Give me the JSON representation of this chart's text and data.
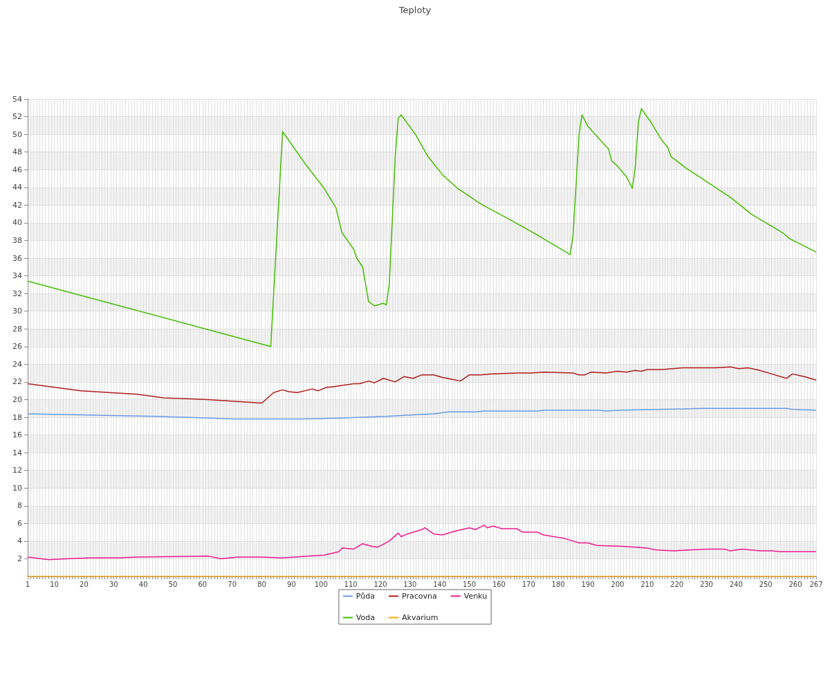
{
  "chart_data": {
    "type": "line",
    "title": "Teploty",
    "marker": "none",
    "grid": true,
    "legend": "bottom",
    "xlim": [
      1,
      267
    ],
    "ylim": [
      0,
      54
    ],
    "yticks": [
      2,
      4,
      6,
      8,
      10,
      12,
      14,
      16,
      18,
      20,
      22,
      24,
      26,
      28,
      30,
      32,
      34,
      36,
      38,
      40,
      42,
      44,
      46,
      48,
      50,
      52,
      54
    ],
    "xticks": [
      1,
      {
        "value": 2,
        "label": null
      },
      {
        "value": 3,
        "label": null
      },
      {
        "value": 4,
        "label": null
      },
      {
        "value": 5,
        "label": null
      },
      {
        "value": 6,
        "label": null
      },
      {
        "value": 7,
        "label": null
      },
      {
        "value": 8,
        "label": null
      },
      {
        "value": 9,
        "label": null
      },
      10,
      {
        "value": 11,
        "label": null
      },
      {
        "value": 12,
        "label": null
      },
      {
        "value": 13,
        "label": null
      },
      {
        "value": 14,
        "label": null
      },
      {
        "value": 15,
        "label": null
      },
      {
        "value": 16,
        "label": null
      },
      {
        "value": 17,
        "label": null
      },
      {
        "value": 18,
        "label": null
      },
      {
        "value": 19,
        "label": null
      },
      20,
      {
        "value": 21,
        "label": null
      },
      {
        "value": 22,
        "label": null
      },
      {
        "value": 23,
        "label": null
      },
      {
        "value": 24,
        "label": null
      },
      {
        "value": 25,
        "label": null
      },
      {
        "value": 26,
        "label": null
      },
      {
        "value": 27,
        "label": null
      },
      {
        "value": 28,
        "label": null
      },
      {
        "value": 29,
        "label": null
      },
      30,
      {
        "value": 31,
        "label": null
      },
      {
        "value": 32,
        "label": null
      },
      {
        "value": 33,
        "label": null
      },
      {
        "value": 34,
        "label": null
      },
      {
        "value": 35,
        "label": null
      },
      {
        "value": 36,
        "label": null
      },
      {
        "value": 37,
        "label": null
      },
      {
        "value": 38,
        "label": null
      },
      {
        "value": 39,
        "label": null
      },
      40,
      {
        "value": 41,
        "label": null
      },
      {
        "value": 42,
        "label": null
      },
      {
        "value": 43,
        "label": null
      },
      {
        "value": 44,
        "label": null
      },
      {
        "value": 45,
        "label": null
      },
      {
        "value": 46,
        "label": null
      },
      {
        "value": 47,
        "label": null
      },
      {
        "value": 48,
        "label": null
      },
      {
        "value": 49,
        "label": null
      },
      50,
      {
        "value": 51,
        "label": null
      },
      {
        "value": 52,
        "label": null
      },
      {
        "value": 53,
        "label": null
      },
      {
        "value": 54,
        "label": null
      },
      {
        "value": 55,
        "label": null
      },
      {
        "value": 56,
        "label": null
      },
      {
        "value": 57,
        "label": null
      },
      {
        "value": 58,
        "label": null
      },
      {
        "value": 59,
        "label": null
      },
      60,
      {
        "value": 61,
        "label": null
      },
      {
        "value": 62,
        "label": null
      },
      {
        "value": 63,
        "label": null
      },
      {
        "value": 64,
        "label": null
      },
      {
        "value": 65,
        "label": null
      },
      {
        "value": 66,
        "label": null
      },
      {
        "value": 67,
        "label": null
      },
      {
        "value": 68,
        "label": null
      },
      {
        "value": 69,
        "label": null
      },
      70,
      {
        "value": 71,
        "label": null
      },
      {
        "value": 72,
        "label": null
      },
      {
        "value": 73,
        "label": null
      },
      {
        "value": 74,
        "label": null
      },
      {
        "value": 75,
        "label": null
      },
      {
        "value": 76,
        "label": null
      },
      {
        "value": 77,
        "label": null
      },
      {
        "value": 78,
        "label": null
      },
      {
        "value": 79,
        "label": null
      },
      80,
      {
        "value": 81,
        "label": null
      },
      {
        "value": 82,
        "label": null
      },
      {
        "value": 83,
        "label": null
      },
      {
        "value": 84,
        "label": null
      },
      {
        "value": 85,
        "label": null
      },
      {
        "value": 86,
        "label": null
      },
      {
        "value": 87,
        "label": null
      },
      {
        "value": 88,
        "label": null
      },
      {
        "value": 89,
        "label": null
      },
      90,
      {
        "value": 91,
        "label": null
      },
      {
        "value": 92,
        "label": null
      },
      {
        "value": 93,
        "label": null
      },
      {
        "value": 94,
        "label": null
      },
      {
        "value": 95,
        "label": null
      },
      {
        "value": 96,
        "label": null
      },
      {
        "value": 97,
        "label": null
      },
      {
        "value": 98,
        "label": null
      },
      {
        "value": 99,
        "label": null
      },
      100,
      {
        "value": 101,
        "label": null
      },
      {
        "value": 102,
        "label": null
      },
      {
        "value": 103,
        "label": null
      },
      {
        "value": 104,
        "label": null
      },
      {
        "value": 105,
        "label": null
      },
      {
        "value": 106,
        "label": null
      },
      {
        "value": 107,
        "label": null
      },
      {
        "value": 108,
        "label": null
      },
      {
        "value": 109,
        "label": null
      },
      110,
      {
        "value": 111,
        "label": null
      },
      {
        "value": 112,
        "label": null
      },
      {
        "value": 113,
        "label": null
      },
      {
        "value": 114,
        "label": null
      },
      {
        "value": 115,
        "label": null
      },
      {
        "value": 116,
        "label": null
      },
      {
        "value": 117,
        "label": null
      },
      {
        "value": 118,
        "label": null
      },
      {
        "value": 119,
        "label": null
      },
      120,
      {
        "value": 121,
        "label": null
      },
      {
        "value": 122,
        "label": null
      },
      {
        "value": 123,
        "label": null
      },
      {
        "value": 124,
        "label": null
      },
      {
        "value": 125,
        "label": null
      },
      {
        "value": 126,
        "label": null
      },
      {
        "value": 127,
        "label": null
      },
      {
        "value": 128,
        "label": null
      },
      {
        "value": 129,
        "label": null
      },
      130,
      {
        "value": 131,
        "label": null
      },
      {
        "value": 132,
        "label": null
      },
      {
        "value": 133,
        "label": null
      },
      {
        "value": 134,
        "label": null
      },
      {
        "value": 135,
        "label": null
      },
      {
        "value": 136,
        "label": null
      },
      {
        "value": 137,
        "label": null
      },
      {
        "value": 138,
        "label": null
      },
      {
        "value": 139,
        "label": null
      },
      140,
      {
        "value": 141,
        "label": null
      },
      {
        "value": 142,
        "label": null
      },
      {
        "value": 143,
        "label": null
      },
      {
        "value": 144,
        "label": null
      },
      {
        "value": 145,
        "label": null
      },
      {
        "value": 146,
        "label": null
      },
      {
        "value": 147,
        "label": null
      },
      {
        "value": 148,
        "label": null
      },
      {
        "value": 149,
        "label": null
      },
      150,
      {
        "value": 151,
        "label": null
      },
      {
        "value": 152,
        "label": null
      },
      {
        "value": 153,
        "label": null
      },
      {
        "value": 154,
        "label": null
      },
      {
        "value": 155,
        "label": null
      },
      {
        "value": 156,
        "label": null
      },
      {
        "value": 157,
        "label": null
      },
      {
        "value": 158,
        "label": null
      },
      {
        "value": 159,
        "label": null
      },
      160,
      {
        "value": 161,
        "label": null
      },
      {
        "value": 162,
        "label": null
      },
      {
        "value": 163,
        "label": null
      },
      {
        "value": 164,
        "label": null
      },
      {
        "value": 165,
        "label": null
      },
      {
        "value": 166,
        "label": null
      },
      {
        "value": 167,
        "label": null
      },
      {
        "value": 168,
        "label": null
      },
      {
        "value": 169,
        "label": null
      },
      170,
      {
        "value": 171,
        "label": null
      },
      {
        "value": 172,
        "label": null
      },
      {
        "value": 173,
        "label": null
      },
      {
        "value": 174,
        "label": null
      },
      {
        "value": 175,
        "label": null
      },
      {
        "value": 176,
        "label": null
      },
      {
        "value": 177,
        "label": null
      },
      {
        "value": 178,
        "label": null
      },
      {
        "value": 179,
        "label": null
      },
      180,
      {
        "value": 181,
        "label": null
      },
      {
        "value": 182,
        "label": null
      },
      {
        "value": 183,
        "label": null
      },
      {
        "value": 184,
        "label": null
      },
      {
        "value": 185,
        "label": null
      },
      {
        "value": 186,
        "label": null
      },
      {
        "value": 187,
        "label": null
      },
      {
        "value": 188,
        "label": null
      },
      {
        "value": 189,
        "label": null
      },
      190,
      {
        "value": 191,
        "label": null
      },
      {
        "value": 192,
        "label": null
      },
      {
        "value": 193,
        "label": null
      },
      {
        "value": 194,
        "label": null
      },
      {
        "value": 195,
        "label": null
      },
      {
        "value": 196,
        "label": null
      },
      {
        "value": 197,
        "label": null
      },
      {
        "value": 198,
        "label": null
      },
      {
        "value": 199,
        "label": null
      },
      200,
      {
        "value": 201,
        "label": null
      },
      {
        "value": 202,
        "label": null
      },
      {
        "value": 203,
        "label": null
      },
      {
        "value": 204,
        "label": null
      },
      {
        "value": 205,
        "label": null
      },
      {
        "value": 206,
        "label": null
      },
      {
        "value": 207,
        "label": null
      },
      {
        "value": 208,
        "label": null
      },
      {
        "value": 209,
        "label": null
      },
      210,
      {
        "value": 211,
        "label": null
      },
      {
        "value": 212,
        "label": null
      },
      {
        "value": 213,
        "label": null
      },
      {
        "value": 214,
        "label": null
      },
      {
        "value": 215,
        "label": null
      },
      {
        "value": 216,
        "label": null
      },
      {
        "value": 217,
        "label": null
      },
      {
        "value": 218,
        "label": null
      },
      {
        "value": 219,
        "label": null
      },
      220,
      {
        "value": 221,
        "label": null
      },
      {
        "value": 222,
        "label": null
      },
      {
        "value": 223,
        "label": null
      },
      {
        "value": 224,
        "label": null
      },
      {
        "value": 225,
        "label": null
      },
      {
        "value": 226,
        "label": null
      },
      {
        "value": 227,
        "label": null
      },
      {
        "value": 228,
        "label": null
      },
      {
        "value": 229,
        "label": null
      },
      230,
      {
        "value": 231,
        "label": null
      },
      {
        "value": 232,
        "label": null
      },
      {
        "value": 233,
        "label": null
      },
      {
        "value": 234,
        "label": null
      },
      {
        "value": 235,
        "label": null
      },
      {
        "value": 236,
        "label": null
      },
      {
        "value": 237,
        "label": null
      },
      {
        "value": 238,
        "label": null
      },
      {
        "value": 239,
        "label": null
      },
      240,
      {
        "value": 241,
        "label": null
      },
      {
        "value": 242,
        "label": null
      },
      {
        "value": 243,
        "label": null
      },
      {
        "value": 244,
        "label": null
      },
      {
        "value": 245,
        "label": null
      },
      {
        "value": 246,
        "label": null
      },
      {
        "value": 247,
        "label": null
      },
      {
        "value": 248,
        "label": null
      },
      {
        "value": 249,
        "label": null
      },
      250,
      {
        "value": 251,
        "label": null
      },
      {
        "value": 252,
        "label": null
      },
      {
        "value": 253,
        "label": null
      },
      {
        "value": 254,
        "label": null
      },
      {
        "value": 255,
        "label": null
      },
      {
        "value": 256,
        "label": null
      },
      {
        "value": 257,
        "label": null
      },
      {
        "value": 258,
        "label": null
      },
      {
        "value": 259,
        "label": null
      },
      260,
      {
        "value": 261,
        "label": null
      },
      {
        "value": 262,
        "label": null
      },
      {
        "value": 263,
        "label": null
      },
      {
        "value": 264,
        "label": null
      },
      {
        "value": 265,
        "label": null
      },
      {
        "value": 266,
        "label": null
      },
      267
    ],
    "series": [
      {
        "name": "Půda",
        "color": "#6a9be8",
        "x": [
          1,
          45,
          71,
          93,
          106,
          122,
          132,
          138,
          143,
          152,
          155,
          173,
          175,
          194,
          196,
          201,
          215,
          229,
          257,
          259,
          267
        ],
        "values": [
          18.4,
          18.1,
          17.8,
          17.8,
          17.9,
          18.1,
          18.3,
          18.4,
          18.6,
          18.6,
          18.7,
          18.7,
          18.8,
          18.8,
          18.7,
          18.8,
          18.9,
          19.0,
          19.0,
          18.9,
          18.8
        ]
      },
      {
        "name": "Pracovna",
        "color": "#b01c1c",
        "x": [
          1,
          19,
          38,
          47,
          62,
          71,
          80,
          84,
          87,
          89,
          92,
          97,
          99,
          102,
          103,
          107,
          111,
          113,
          116,
          118,
          121,
          125,
          128,
          131,
          134,
          138,
          141,
          144,
          147,
          150,
          154,
          157,
          166,
          171,
          175,
          185,
          187,
          189,
          191,
          196,
          200,
          203,
          206,
          208,
          210,
          215,
          222,
          233,
          238,
          241,
          244,
          248,
          252,
          257,
          259,
          263,
          267
        ],
        "values": [
          21.8,
          21.0,
          20.6,
          20.2,
          20.0,
          19.8,
          19.6,
          20.8,
          21.1,
          20.9,
          20.8,
          21.2,
          21.0,
          21.4,
          21.4,
          21.6,
          21.8,
          21.8,
          22.1,
          21.9,
          22.4,
          22.0,
          22.6,
          22.4,
          22.8,
          22.8,
          22.5,
          22.3,
          22.1,
          22.8,
          22.8,
          22.9,
          23.0,
          23.0,
          23.1,
          23.0,
          22.8,
          22.8,
          23.1,
          23.0,
          23.2,
          23.1,
          23.3,
          23.2,
          23.4,
          23.4,
          23.6,
          23.6,
          23.7,
          23.5,
          23.6,
          23.3,
          22.9,
          22.4,
          22.9,
          22.6,
          22.2
        ]
      },
      {
        "name": "Venku",
        "color": "#f0198c",
        "x": [
          1,
          8,
          14,
          22,
          31,
          38,
          62,
          66,
          72,
          80,
          87,
          96,
          101,
          106,
          107,
          111,
          114,
          117,
          119,
          123,
          126,
          127,
          129,
          134,
          135,
          138,
          141,
          145,
          150,
          152,
          155,
          156,
          158,
          161,
          166,
          168,
          173,
          175,
          182,
          185,
          187,
          190,
          193,
          202,
          206,
          210,
          213,
          219,
          224,
          231,
          236,
          238,
          242,
          245,
          248,
          252,
          255,
          267
        ],
        "values": [
          2.2,
          1.9,
          2.0,
          2.1,
          2.1,
          2.2,
          2.3,
          2.0,
          2.2,
          2.2,
          2.1,
          2.3,
          2.4,
          2.8,
          3.2,
          3.1,
          3.7,
          3.4,
          3.3,
          4.0,
          4.9,
          4.5,
          4.8,
          5.3,
          5.5,
          4.8,
          4.7,
          5.1,
          5.5,
          5.3,
          5.8,
          5.5,
          5.7,
          5.4,
          5.4,
          5.0,
          5.0,
          4.7,
          4.3,
          4.0,
          3.8,
          3.8,
          3.5,
          3.4,
          3.3,
          3.2,
          3.0,
          2.9,
          3.0,
          3.1,
          3.1,
          2.9,
          3.1,
          3.0,
          2.9,
          2.9,
          2.8,
          2.8
        ]
      },
      {
        "name": "Voda",
        "color": "#44bb00",
        "x": [
          1,
          83,
          87,
          95,
          101,
          105,
          107,
          111,
          112,
          114,
          116,
          118,
          121,
          122,
          123,
          125,
          126,
          127,
          132,
          136,
          141,
          146,
          154,
          164,
          173,
          180,
          184,
          185,
          187,
          188,
          190,
          197,
          198,
          200,
          203,
          205,
          206,
          207,
          208,
          211,
          215,
          217,
          218,
          223,
          228,
          238,
          241,
          245,
          256,
          258,
          267
        ],
        "values": [
          33.4,
          26.0,
          50.3,
          46.5,
          43.9,
          41.7,
          38.9,
          37.0,
          36.0,
          35.0,
          31.1,
          30.6,
          30.9,
          30.7,
          33.1,
          47.5,
          51.8,
          52.2,
          49.9,
          47.5,
          45.4,
          43.9,
          42.1,
          40.3,
          38.6,
          37.2,
          36.4,
          38.6,
          49.9,
          52.2,
          50.9,
          48.3,
          47.0,
          46.4,
          45.2,
          43.9,
          46.4,
          51.3,
          52.9,
          51.5,
          49.3,
          48.5,
          47.5,
          46.2,
          45.1,
          42.9,
          42.1,
          41.0,
          38.8,
          38.2,
          36.7
        ]
      },
      {
        "name": "Akvarium",
        "color": "#ffa500",
        "x": [
          1,
          267
        ],
        "values": [
          0,
          0
        ]
      }
    ]
  }
}
